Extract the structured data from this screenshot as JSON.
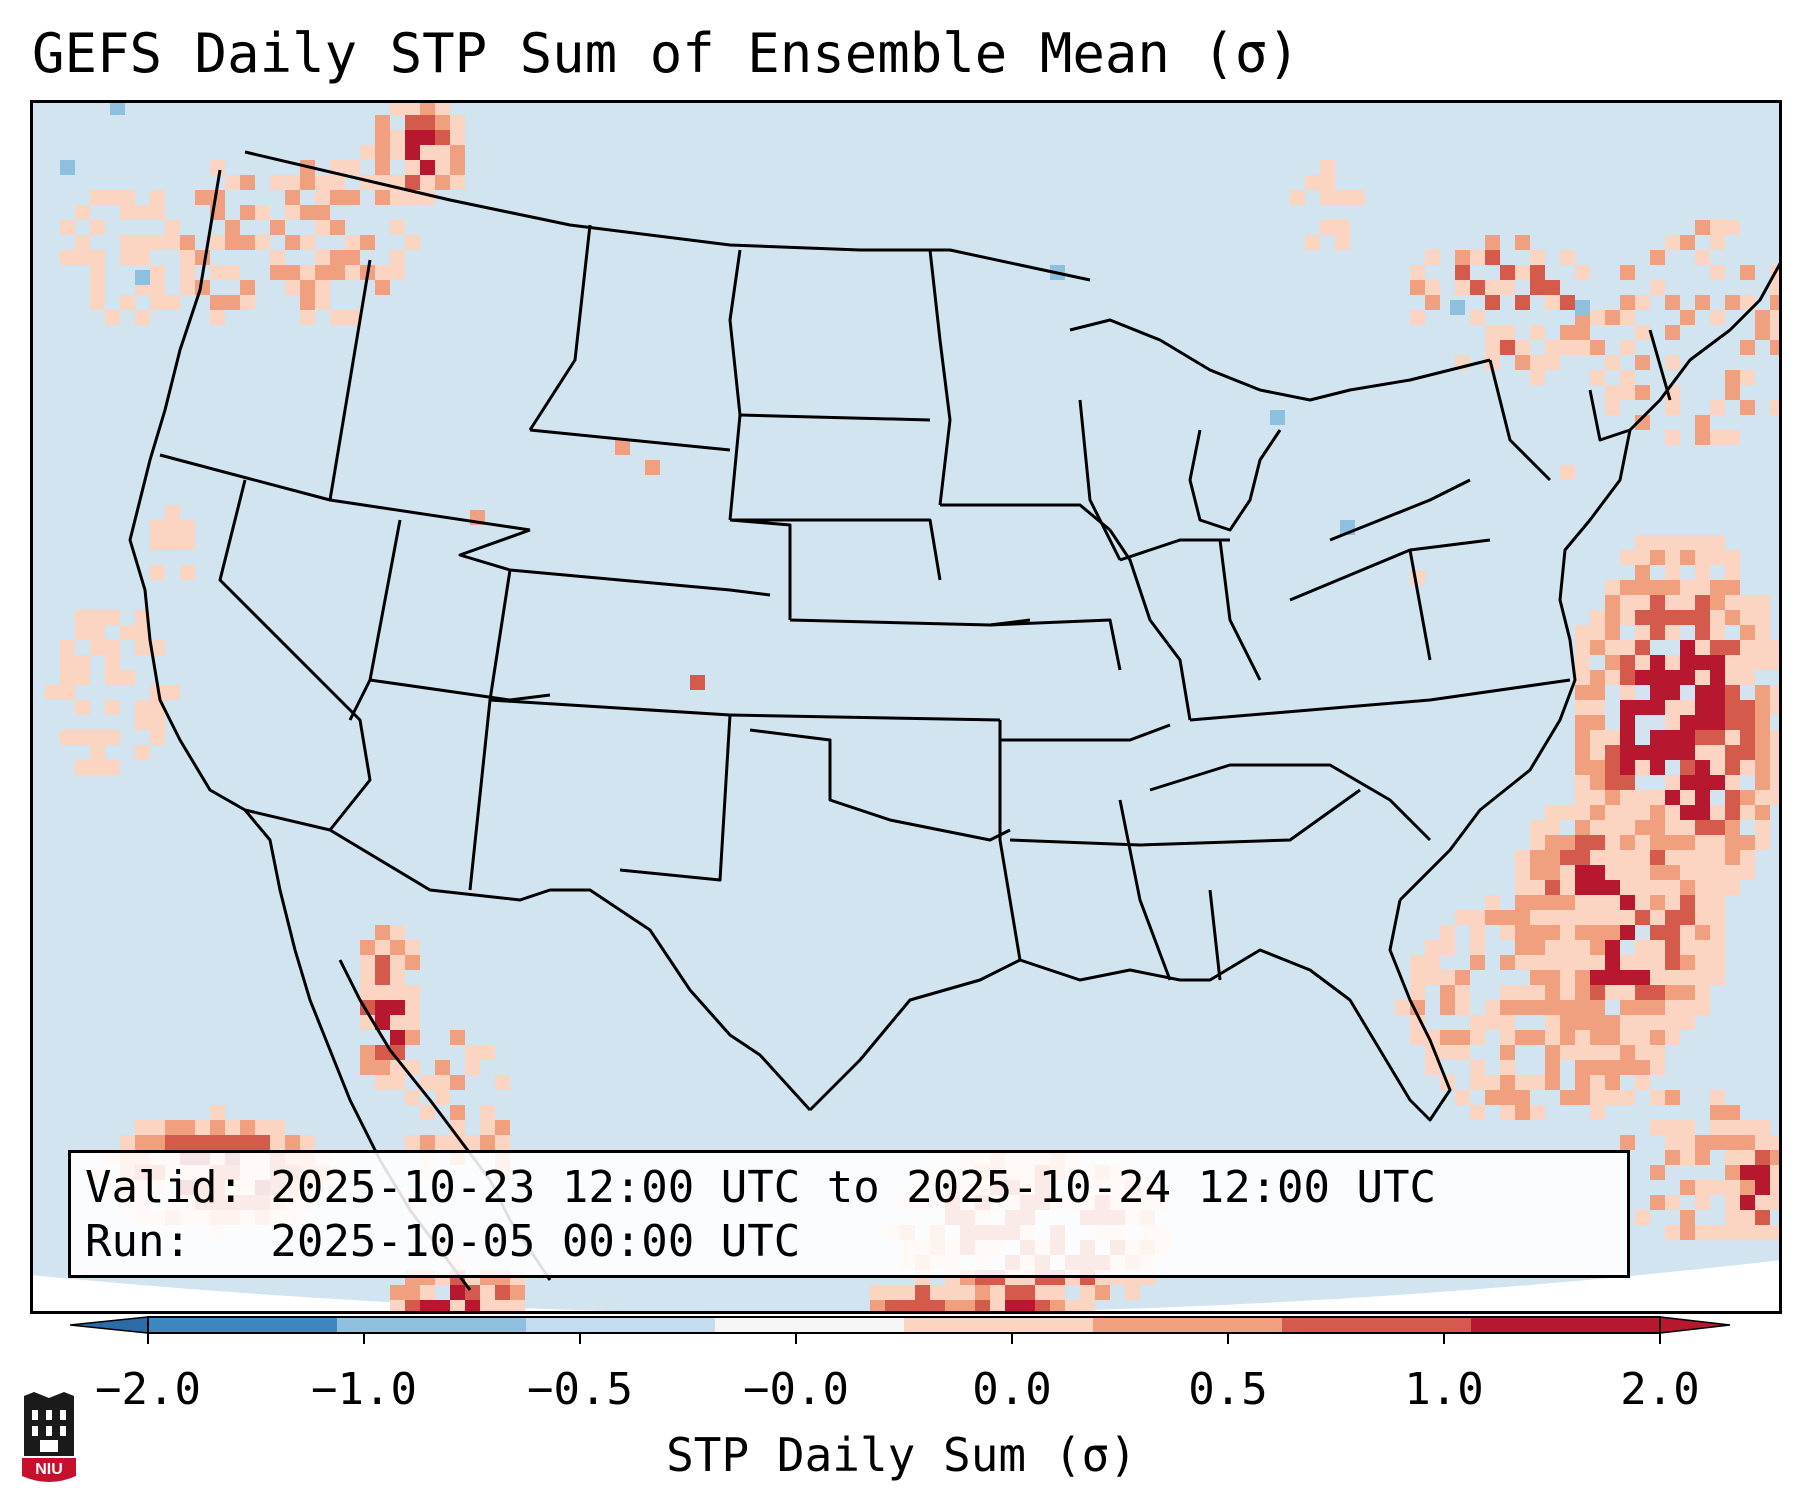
{
  "title": "GEFS Daily STP Sum of Ensemble Mean (σ)",
  "info": {
    "valid_line": "Valid: 2025-10-23 12:00 UTC to 2025-10-24 12:00 UTC",
    "run_line": "Run:   2025-10-05 00:00 UTC"
  },
  "colorbar": {
    "label": "STP Daily Sum (σ)",
    "tick_labels": [
      "−2.0",
      "−1.0",
      "−0.5",
      "−0.0",
      "0.0",
      "0.5",
      "1.0",
      "2.0"
    ],
    "bin_colors": [
      "#3d86c0",
      "#8fbfdf",
      "#c4dcee",
      "#f5f5f5",
      "#fbd5c1",
      "#f0a07e",
      "#d45a4c",
      "#b7182f"
    ],
    "extend_low_color": "#2b6ca8",
    "extend_high_color": "#b7182f"
  },
  "map": {
    "background_color": "#d1e4f0",
    "outline": "CONUS state boundaries and coastlines",
    "hotspots": [
      {
        "region": "Atlantic east of Florida/Carolinas",
        "level": "high"
      },
      {
        "region": "Gulf of California / Baja",
        "level": "high"
      },
      {
        "region": "Pacific Northwest / British Columbia",
        "level": "high"
      },
      {
        "region": "Southern Gulf of Mexico",
        "level": "high"
      },
      {
        "region": "Eastern Pacific SW of California",
        "level": "high"
      },
      {
        "region": "Northeast Canada / Maine",
        "level": "moderate"
      },
      {
        "region": "Pacific off California",
        "level": "low"
      }
    ]
  },
  "logo": {
    "text": "NIU",
    "color": "#c8102e"
  }
}
